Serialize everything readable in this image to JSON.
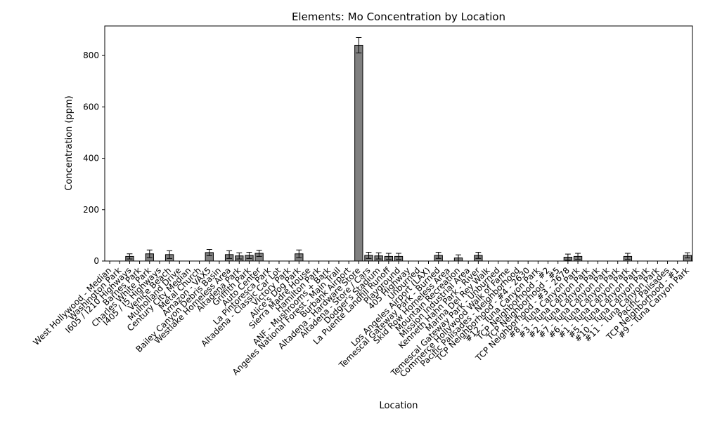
{
  "chart_data": {
    "type": "bar",
    "title": "Elements: Mo Concentration by Location",
    "xlabel": "Location",
    "ylabel": "Concentration (ppm)",
    "ylim": [
      0,
      915
    ],
    "yticks": [
      0,
      200,
      400,
      600,
      800
    ],
    "bar_color": "#808080",
    "categories": [
      "West Hollywood - Median",
      "Washington Park",
      "I605 / I210 Highways",
      "Barnes Park",
      "Charles White Park",
      "I405 / I5 Highways",
      "Venice Beach",
      "Mulholland Drive",
      "Century City Median",
      "Metal Church",
      "Amazon - VAX5",
      "Bailey Canyon Debris Basin",
      "Westlake Homeless Area",
      "Altadena Park",
      "Griffith Park",
      "Auto Center",
      "La Pintoresca Park",
      "Altadena - Classic Car Lot",
      "Victory Park",
      "Alice's Dog Park",
      "Sierra Madre House",
      "Hamilton Park",
      "ANF - Mushrooms + Bark",
      "Angeles National Forest - Main Trail",
      "Burbank Airport",
      "Altadena - Hardware Store",
      "Altadena - Store / Cars",
      "Dodger's Stadium",
      "La Puente Landfill Runoff",
      "Playground",
      "405 Highway",
      "Unburned",
      "Los Angeles Airport (LAX)",
      "Temescal Gateway Park - Burned",
      "Skid Row Homeless Area",
      "Mountain Recreation",
      "Mission Industrial Area",
      "Kenneth Hahn Park - River",
      "Marina Del Rey Walk",
      "Temescal Gateway Park - Unburned",
      "Commerce Hollywood Walk of Fame",
      "Pacific Palisades - Neighborhood",
      "TCP Neighborhood - #4 - 2630",
      "#12 - Tuna Canyon Park",
      "TCP Neighborhood - #2",
      "TCP Neighborhood - #5",
      "TCP Neighborhood - #3 - 2678",
      "#8 - Tuna Canyon Park",
      "#3 - Tuna Canyon Park",
      "#2 - Tuna Canyon Park",
      "#7 - Tuna Canyon Park",
      "#6 - Tuna Canyon Park",
      "#1 - Tuna Canyon Park",
      "#5 - Tuna Canyon Park",
      "#10 - Tuna Canyon Park",
      "#11 - Tuna Canyon Park",
      "Pacific Palisades",
      "TCP Neighborhood - #1",
      "#9 - Tuna Canyon Park"
    ],
    "values": [
      0,
      0,
      18,
      0,
      28,
      0,
      25,
      0,
      0,
      0,
      33,
      0,
      25,
      20,
      22,
      30,
      0,
      0,
      0,
      28,
      0,
      0,
      0,
      0,
      0,
      840,
      22,
      20,
      18,
      18,
      0,
      0,
      0,
      22,
      0,
      12,
      0,
      22,
      0,
      0,
      0,
      0,
      0,
      0,
      0,
      0,
      15,
      18,
      0,
      0,
      0,
      0,
      18,
      0,
      0,
      0,
      0,
      0,
      22
    ],
    "errors": [
      0,
      0,
      10,
      0,
      15,
      0,
      15,
      0,
      0,
      0,
      12,
      0,
      15,
      12,
      12,
      12,
      0,
      0,
      0,
      15,
      0,
      0,
      0,
      0,
      0,
      30,
      12,
      12,
      12,
      12,
      0,
      0,
      0,
      12,
      0,
      12,
      0,
      12,
      0,
      0,
      0,
      0,
      0,
      0,
      0,
      0,
      12,
      12,
      0,
      0,
      0,
      0,
      12,
      0,
      0,
      0,
      0,
      0,
      10
    ],
    "grid": false,
    "legend": "none"
  }
}
